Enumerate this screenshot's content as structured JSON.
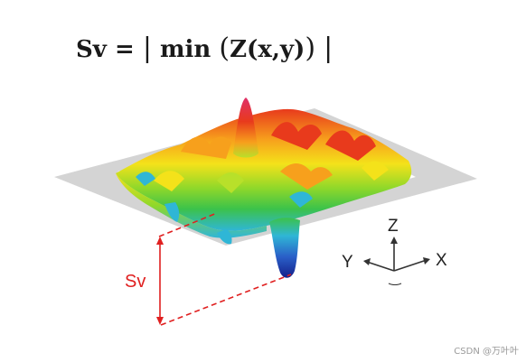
{
  "formula": {
    "lhs": "Sv",
    "equals": "=",
    "func": "min",
    "arg": "Z(x,y)"
  },
  "depth_marker": {
    "label": "Sv",
    "color": "#e02020"
  },
  "axes": {
    "z": "Z",
    "y": "Y",
    "x": "X"
  },
  "surface_colors": [
    "#1a2fa8",
    "#2fb6d6",
    "#3cc24a",
    "#b8e02a",
    "#f4e21a",
    "#f7a01c",
    "#e83a1c",
    "#e0306a"
  ],
  "reference_plane_color": "#d4d4d4",
  "watermark": "CSDN @万叶叶"
}
